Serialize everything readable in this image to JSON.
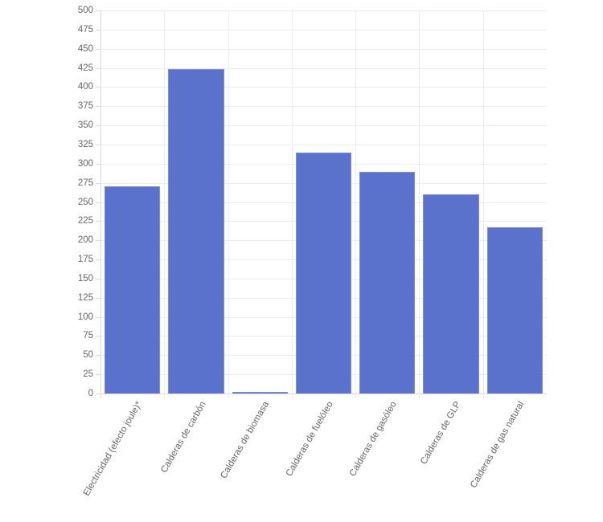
{
  "chart_data": {
    "type": "bar",
    "title": "",
    "xlabel": "",
    "ylabel": "",
    "categories": [
      "Electricidad (efecto joule)*",
      "Calderas de carbón",
      "Calderas de biomasa",
      "Calderas de fuelóleo",
      "Calderas de gasóleo",
      "Calderas de GLP",
      "Calderas de gas natural"
    ],
    "values": [
      270,
      423,
      2,
      314,
      289,
      260,
      217
    ],
    "ylim": [
      0,
      500
    ],
    "yticks": [
      0,
      25,
      50,
      75,
      100,
      125,
      150,
      175,
      200,
      225,
      250,
      275,
      300,
      325,
      350,
      375,
      400,
      425,
      450,
      475,
      500
    ],
    "grid": true,
    "legend": null,
    "colors": {
      "bar_fill": "#5a72cc",
      "bar_border": "#7a8fdb",
      "grid": "#ececec",
      "tick_text": "#666666"
    }
  }
}
